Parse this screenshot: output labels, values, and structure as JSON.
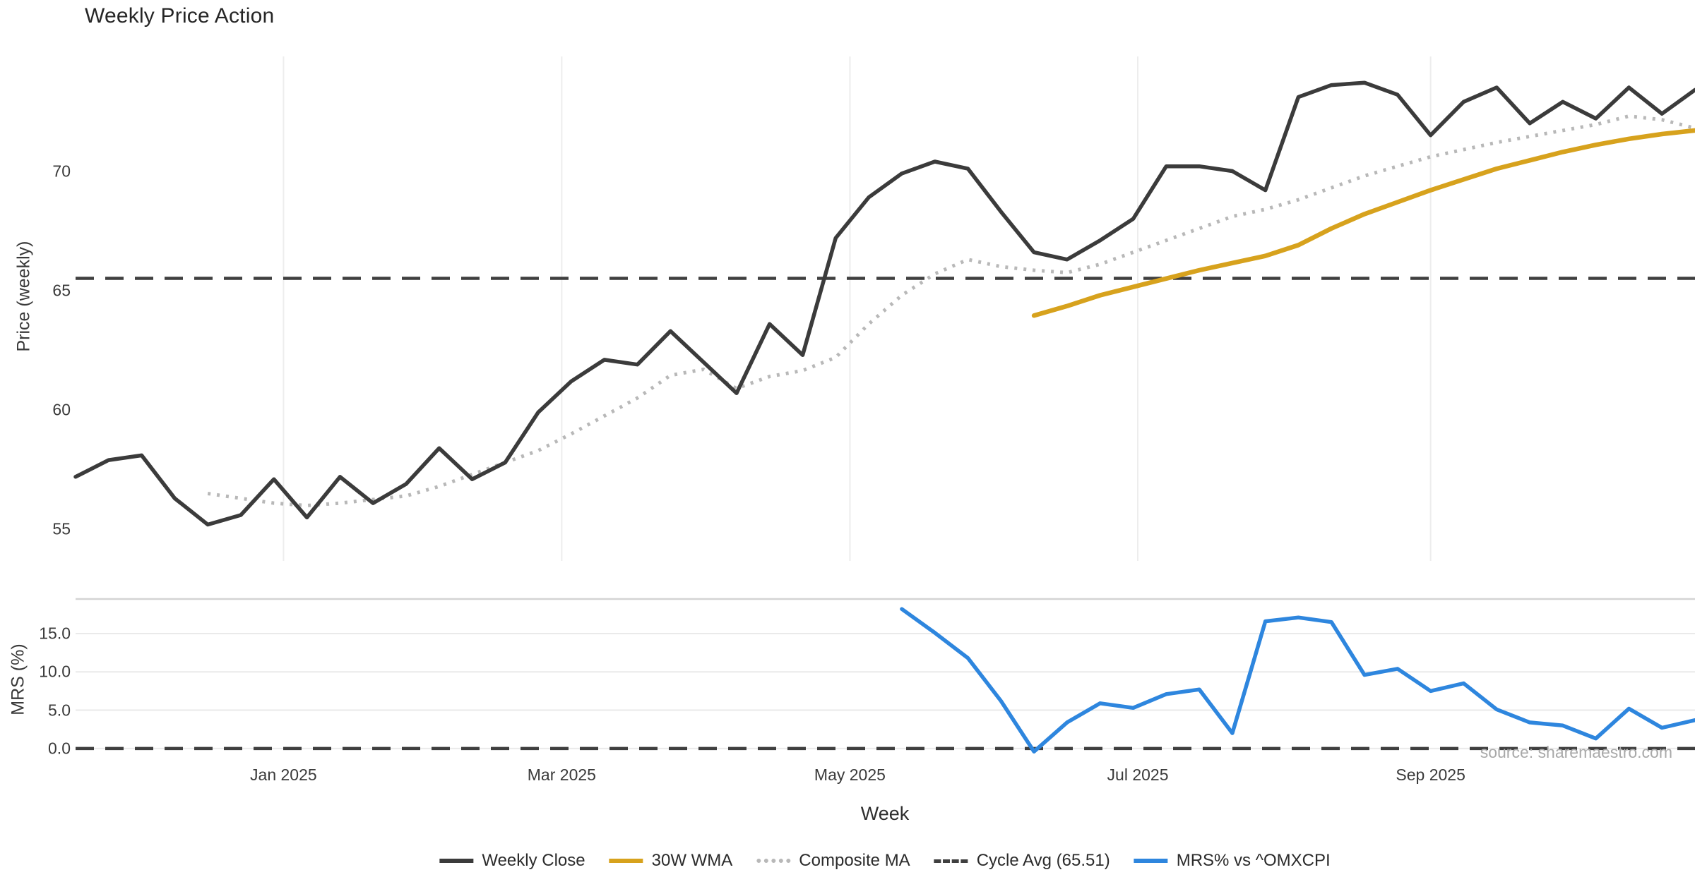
{
  "chart_data": {
    "type": "line",
    "title": "Weekly Price Action",
    "xlabel": "Week",
    "source_note": "source: sharemaestro.com",
    "x": [
      "2024-11-18",
      "2024-11-25",
      "2024-12-02",
      "2024-12-09",
      "2024-12-16",
      "2024-12-23",
      "2024-12-30",
      "2025-01-06",
      "2025-01-13",
      "2025-01-20",
      "2025-01-27",
      "2025-02-03",
      "2025-02-10",
      "2025-02-17",
      "2025-02-24",
      "2025-03-03",
      "2025-03-10",
      "2025-03-17",
      "2025-03-24",
      "2025-03-31",
      "2025-04-07",
      "2025-04-14",
      "2025-04-21",
      "2025-04-28",
      "2025-05-05",
      "2025-05-12",
      "2025-05-19",
      "2025-05-26",
      "2025-06-02",
      "2025-06-09",
      "2025-06-16",
      "2025-06-23",
      "2025-06-30",
      "2025-07-07",
      "2025-07-14",
      "2025-07-21",
      "2025-07-28",
      "2025-08-04",
      "2025-08-11",
      "2025-08-18",
      "2025-08-25",
      "2025-09-01",
      "2025-09-08",
      "2025-09-15",
      "2025-09-22",
      "2025-09-29",
      "2025-10-06",
      "2025-10-13",
      "2025-10-20",
      "2025-10-27"
    ],
    "x_ticks": [
      {
        "label": "Jan 2025",
        "week_index": 6.29
      },
      {
        "label": "Mar 2025",
        "week_index": 14.71
      },
      {
        "label": "May 2025",
        "week_index": 23.43
      },
      {
        "label": "Jul 2025",
        "week_index": 32.14
      },
      {
        "label": "Sep 2025",
        "week_index": 41.0
      }
    ],
    "panels": [
      {
        "ylabel": "Price (weekly)",
        "ylim": [
          53.68,
          74.8
        ],
        "grid": "vertical",
        "yticks": [
          {
            "label": "70",
            "value": 70
          },
          {
            "label": "65",
            "value": 65
          },
          {
            "label": "60",
            "value": 60
          },
          {
            "label": "55",
            "value": 55
          }
        ],
        "series": [
          {
            "name": "Cycle Avg (65.51)",
            "style": "dashed-hline",
            "color": "#3f3f3f",
            "width": 4.5,
            "value": 65.51
          },
          {
            "name": "Composite MA",
            "style": "dotted",
            "color": "#b8b8b8",
            "width": 5,
            "start_week_index": 4,
            "values": [
              56.5,
              56.3,
              56.1,
              56.0,
              56.1,
              56.25,
              56.4,
              56.8,
              57.3,
              57.8,
              58.3,
              59.0,
              59.75,
              60.5,
              61.45,
              61.7,
              60.9,
              61.4,
              61.65,
              62.2,
              63.6,
              64.8,
              65.7,
              66.3,
              66.0,
              65.85,
              65.75,
              66.1,
              66.6,
              67.1,
              67.6,
              68.1,
              68.4,
              68.8,
              69.3,
              69.8,
              70.2,
              70.6,
              70.9,
              71.2,
              71.45,
              71.7,
              71.95,
              72.3,
              72.15,
              71.8
            ]
          },
          {
            "name": "30W WMA",
            "style": "solid",
            "color": "#d7a21d",
            "width": 6.5,
            "start_week_index": 29,
            "values": [
              63.95,
              64.35,
              64.8,
              65.15,
              65.5,
              65.85,
              66.15,
              66.45,
              66.9,
              67.6,
              68.2,
              68.7,
              69.2,
              69.65,
              70.1,
              70.45,
              70.8,
              71.1,
              71.35,
              71.55,
              71.7
            ]
          },
          {
            "name": "Weekly Close",
            "style": "solid",
            "color": "#3b3b3b",
            "width": 5.5,
            "start_week_index": 0,
            "values": [
              57.2,
              57.9,
              58.1,
              56.3,
              55.2,
              55.6,
              57.1,
              55.5,
              57.2,
              56.1,
              56.9,
              58.4,
              57.1,
              57.8,
              59.9,
              61.2,
              62.1,
              61.9,
              63.3,
              62.0,
              60.7,
              63.6,
              62.3,
              67.2,
              68.9,
              69.9,
              70.4,
              70.1,
              68.3,
              66.6,
              66.3,
              67.1,
              68.0,
              70.2,
              70.2,
              70.0,
              69.2,
              73.1,
              73.6,
              73.7,
              73.2,
              71.5,
              72.9,
              73.5,
              72.0,
              72.9,
              72.2,
              73.5,
              72.4,
              73.4
            ]
          }
        ]
      },
      {
        "ylabel": "MRS (%)",
        "ylim": [
          -1.58,
          19.51
        ],
        "grid": "horizontal",
        "yticks": [
          {
            "label": "15.0",
            "value": 15
          },
          {
            "label": "10.0",
            "value": 10
          },
          {
            "label": "5.0",
            "value": 5
          },
          {
            "label": "0.0",
            "value": 0
          }
        ],
        "series": [
          {
            "name": "Zero line",
            "style": "dashed-hline",
            "color": "#3f3f3f",
            "width": 4.5,
            "value": 0
          },
          {
            "name": "MRS% vs ^OMXCPI",
            "style": "solid",
            "color": "#2e86de",
            "width": 5.5,
            "start_week_index": 25,
            "values": [
              18.2,
              15.1,
              11.8,
              6.2,
              -0.4,
              3.4,
              5.9,
              5.3,
              7.1,
              7.7,
              2.0,
              16.6,
              17.1,
              16.5,
              9.6,
              10.4,
              7.5,
              8.5,
              5.1,
              3.4,
              3.0,
              1.3,
              5.2,
              2.7,
              3.7
            ]
          }
        ]
      }
    ],
    "legend": [
      {
        "label": "Weekly Close",
        "color": "#3b3b3b",
        "style": "solid"
      },
      {
        "label": "30W WMA",
        "color": "#d7a21d",
        "style": "solid"
      },
      {
        "label": "Composite MA",
        "color": "#b8b8b8",
        "style": "dotted"
      },
      {
        "label": "Cycle Avg (65.51)",
        "color": "#3f3f3f",
        "style": "dashed"
      },
      {
        "label": "MRS% vs ^OMXCPI",
        "color": "#2e86de",
        "style": "solid"
      }
    ]
  }
}
